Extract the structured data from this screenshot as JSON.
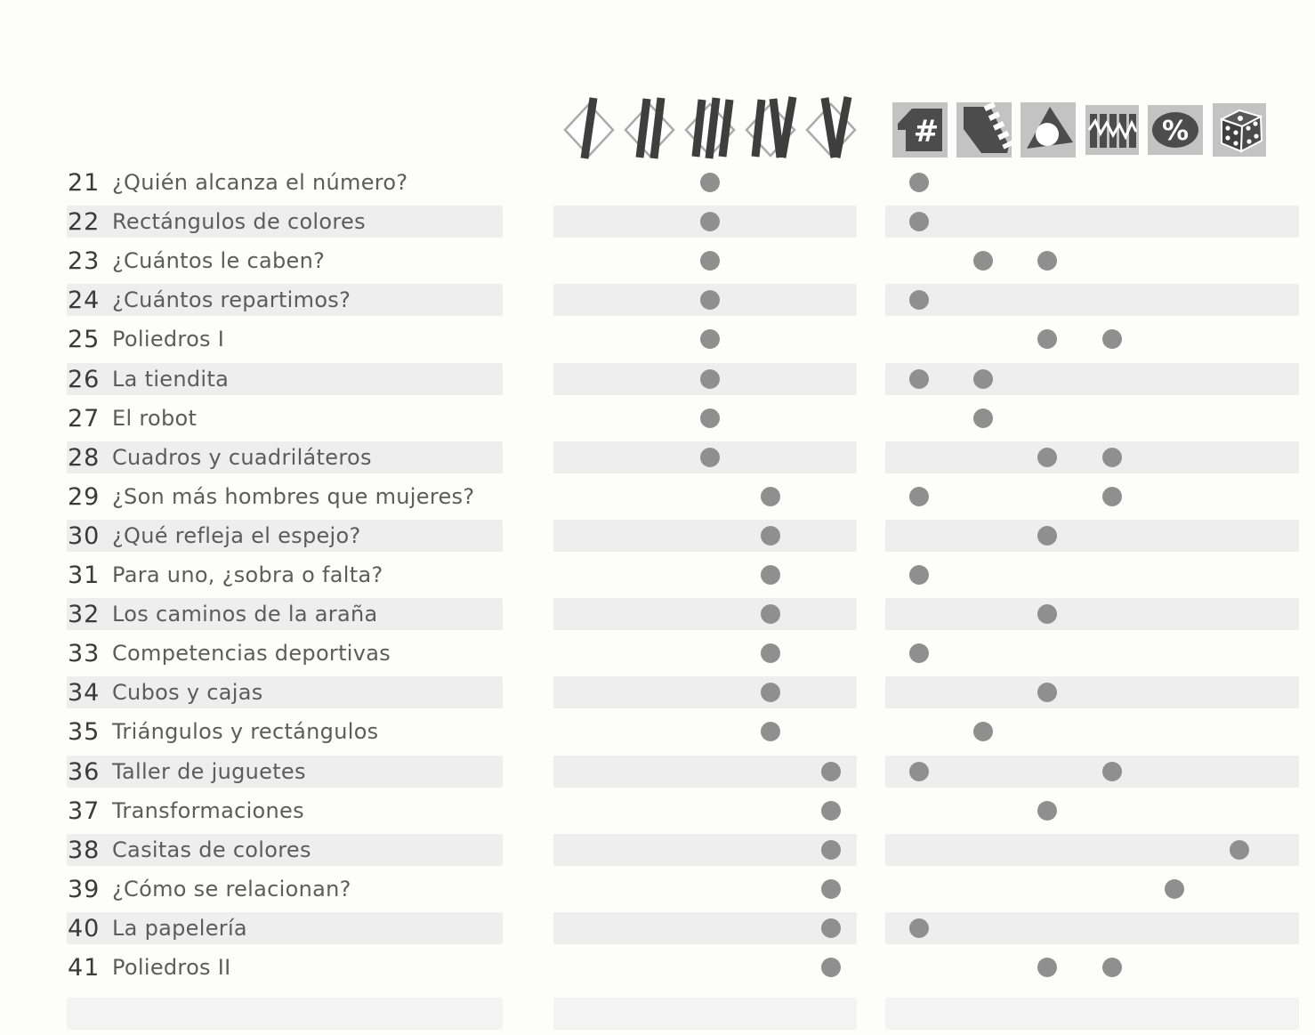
{
  "page": {
    "kind": "textbook-lessons-index",
    "language": "es"
  },
  "colors": {
    "stripe": "#eeeeee",
    "dot": "#8f8f8f",
    "icon_square_bg": "#c3c3c3",
    "icon_dark": "#4c4c4c",
    "diamond_outline": "#ababab",
    "diamond_bars": "#3e3e3e",
    "number_text": "#3a3a3a",
    "title_text": "#5c5c5c"
  },
  "header": {
    "block_icons": [
      {
        "id": "block-I",
        "numeral": "I"
      },
      {
        "id": "block-II",
        "numeral": "II"
      },
      {
        "id": "block-III",
        "numeral": "III"
      },
      {
        "id": "block-IV",
        "numeral": "IV"
      },
      {
        "id": "block-V",
        "numeral": "V"
      }
    ],
    "subject_icons": [
      {
        "id": "numbers",
        "glyph": "#",
        "description": "number sign icon"
      },
      {
        "id": "measurement",
        "glyph": "ruler",
        "description": "slanted ruler icon"
      },
      {
        "id": "geometry",
        "glyph": "triangle",
        "description": "triangle with hole icon"
      },
      {
        "id": "chart",
        "glyph": "bars-zigzag",
        "description": "bars with zigzag line icon"
      },
      {
        "id": "percent",
        "glyph": "%",
        "description": "percent in ellipse icon"
      },
      {
        "id": "dice",
        "glyph": "die",
        "description": "dice icon"
      }
    ]
  },
  "lessons": [
    {
      "number": "21",
      "title": "¿Quién alcanza el número?",
      "block": "III",
      "subjects": [
        "numbers"
      ]
    },
    {
      "number": "22",
      "title": "Rectángulos de colores",
      "block": "III",
      "subjects": [
        "numbers"
      ]
    },
    {
      "number": "23",
      "title": "¿Cuántos le caben?",
      "block": "III",
      "subjects": [
        "measurement",
        "geometry"
      ]
    },
    {
      "number": "24",
      "title": "¿Cuántos repartimos?",
      "block": "III",
      "subjects": [
        "numbers"
      ]
    },
    {
      "number": "25",
      "title": "Poliedros I",
      "block": "III",
      "subjects": [
        "geometry",
        "chart"
      ]
    },
    {
      "number": "26",
      "title": "La tiendita",
      "block": "III",
      "subjects": [
        "numbers",
        "measurement"
      ]
    },
    {
      "number": "27",
      "title": "El robot",
      "block": "III",
      "subjects": [
        "measurement"
      ]
    },
    {
      "number": "28",
      "title": "Cuadros y cuadriláteros",
      "block": "III",
      "subjects": [
        "geometry",
        "chart"
      ]
    },
    {
      "number": "29",
      "title": "¿Son más hombres que mujeres?",
      "block": "IV",
      "subjects": [
        "numbers",
        "chart"
      ]
    },
    {
      "number": "30",
      "title": "¿Qué refleja el espejo?",
      "block": "IV",
      "subjects": [
        "geometry"
      ]
    },
    {
      "number": "31",
      "title": "Para uno, ¿sobra o falta?",
      "block": "IV",
      "subjects": [
        "numbers"
      ]
    },
    {
      "number": "32",
      "title": "Los caminos de la araña",
      "block": "IV",
      "subjects": [
        "geometry"
      ]
    },
    {
      "number": "33",
      "title": "Competencias deportivas",
      "block": "IV",
      "subjects": [
        "numbers"
      ]
    },
    {
      "number": "34",
      "title": "Cubos y cajas",
      "block": "IV",
      "subjects": [
        "geometry"
      ]
    },
    {
      "number": "35",
      "title": "Triángulos y rectángulos",
      "block": "IV",
      "subjects": [
        "measurement"
      ]
    },
    {
      "number": "36",
      "title": "Taller de juguetes",
      "block": "V",
      "subjects": [
        "numbers",
        "chart"
      ]
    },
    {
      "number": "37",
      "title": "Transformaciones",
      "block": "V",
      "subjects": [
        "geometry"
      ]
    },
    {
      "number": "38",
      "title": "Casitas de colores",
      "block": "V",
      "subjects": [
        "dice"
      ]
    },
    {
      "number": "39",
      "title": "¿Cómo se relacionan?",
      "block": "V",
      "subjects": [
        "percent"
      ]
    },
    {
      "number": "40",
      "title": "La papelería",
      "block": "V",
      "subjects": [
        "numbers"
      ]
    },
    {
      "number": "41",
      "title": "Poliedros II",
      "block": "V",
      "subjects": [
        "geometry",
        "chart"
      ]
    }
  ]
}
